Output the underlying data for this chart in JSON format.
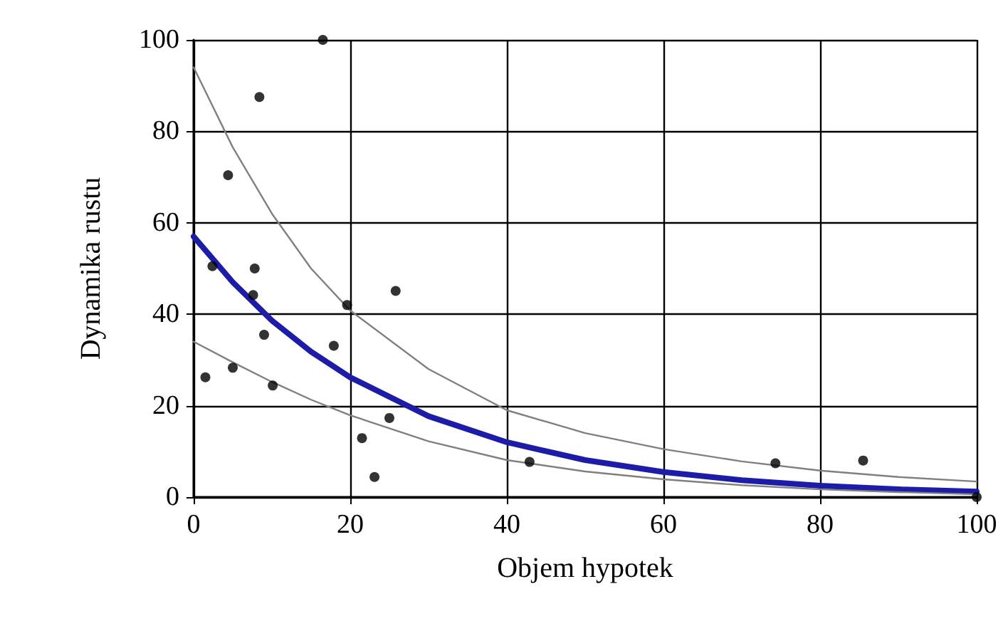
{
  "chart_data": {
    "type": "scatter",
    "xlabel": "Objem hypotek",
    "ylabel": "Dynamika rustu",
    "xlim": [
      0,
      100
    ],
    "xticks": [
      0,
      20,
      40,
      60,
      80,
      100
    ],
    "ylim": [
      0,
      100
    ],
    "yticks": [
      0,
      20,
      40,
      60,
      80,
      100
    ],
    "grid": true,
    "series": [
      {
        "marker": "circle",
        "color": "#000000",
        "x": [
          16.5,
          8.4,
          4.4,
          2.4,
          7.8,
          7.6,
          25.8,
          19.6,
          9.0,
          17.9,
          1.5,
          5.0,
          10.1,
          25.0,
          21.5,
          23.1,
          42.9,
          74.3,
          85.5,
          100
        ],
        "values": [
          100,
          87.5,
          70.4,
          50.5,
          50.0,
          44.2,
          45.1,
          42.0,
          35.5,
          33.1,
          26.2,
          28.3,
          24.4,
          17.3,
          12.9,
          4.4,
          7.7,
          7.4,
          8.0,
          0
        ]
      },
      {
        "type": "line",
        "marker": "none",
        "line_style": "solid",
        "color": "#1c1ca8",
        "x": [
          0,
          5,
          10,
          15,
          20,
          30,
          40,
          50,
          60,
          70,
          80,
          90,
          100
        ],
        "values": [
          57,
          47.0,
          38.6,
          31.8,
          26.2,
          17.7,
          12.0,
          8.1,
          5.5,
          3.7,
          2.5,
          1.7,
          1.2
        ]
      },
      {
        "type": "line",
        "marker": "none",
        "line_style": "solid",
        "color": "#808080",
        "x": [
          0,
          5,
          10,
          15,
          20,
          30,
          40,
          50,
          60,
          70,
          80,
          90,
          100
        ],
        "values": [
          94,
          76.5,
          62,
          50,
          40.8,
          28,
          19,
          14,
          10.5,
          7.8,
          5.8,
          4.4,
          3.4
        ]
      },
      {
        "type": "line",
        "marker": "none",
        "line_style": "solid",
        "color": "#808080",
        "x": [
          0,
          5,
          10,
          15,
          20,
          30,
          40,
          50,
          60,
          70,
          80,
          90,
          100
        ],
        "values": [
          34,
          29.5,
          25.2,
          21.3,
          17.9,
          12.2,
          8.1,
          5.6,
          3.9,
          2.6,
          1.7,
          1.1,
          0.6
        ]
      }
    ]
  }
}
